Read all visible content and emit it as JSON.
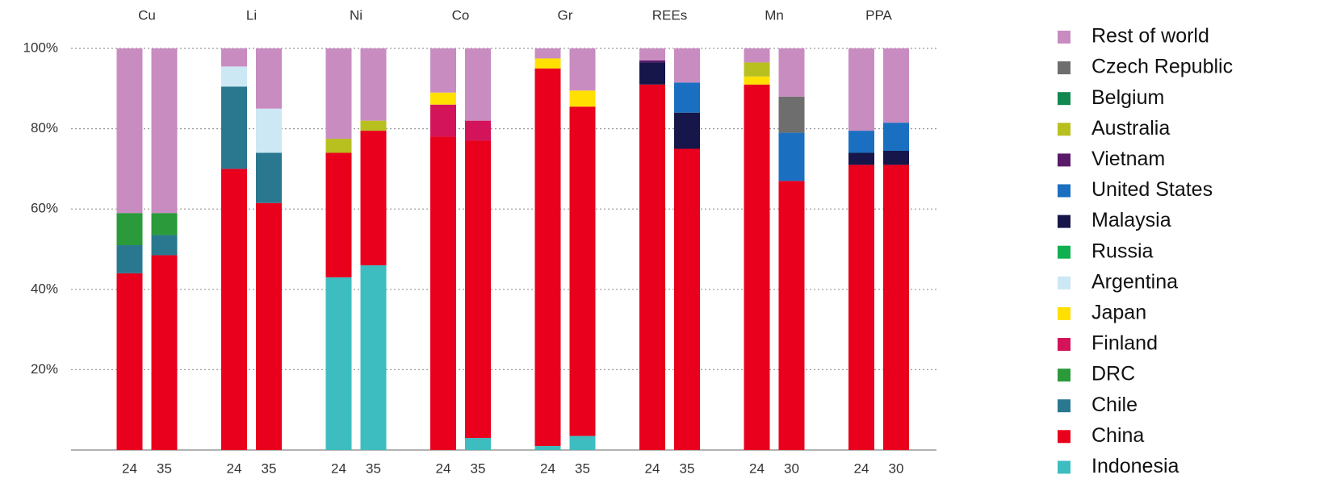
{
  "chart_data": {
    "type": "stacked_bar",
    "groups": [
      "Cu",
      "Li",
      "Ni",
      "Co",
      "Gr",
      "REEs",
      "Mn",
      "PPA"
    ],
    "categories": [
      "24",
      "35",
      "24",
      "35",
      "24",
      "35",
      "24",
      "35",
      "24",
      "35",
      "24",
      "35",
      "24",
      "30",
      "24",
      "30"
    ],
    "ylim": [
      0,
      100
    ],
    "yticks": [
      {
        "value": 20,
        "label": "20%"
      },
      {
        "value": 40,
        "label": "40%"
      },
      {
        "value": 60,
        "label": "60%"
      },
      {
        "value": 80,
        "label": "80%"
      },
      {
        "value": 100,
        "label": "100%"
      }
    ],
    "grid": true,
    "legend": "right",
    "series": [
      {
        "name": "Rest of world",
        "color": "#c88cc0",
        "values": [
          41,
          41,
          4.5,
          15,
          22.5,
          18,
          11,
          18,
          2.5,
          10.5,
          3,
          8.5,
          3.5,
          12,
          20.5,
          18.5
        ]
      },
      {
        "name": "Czech Republic",
        "color": "#6e6e6e",
        "values": [
          0,
          0,
          0,
          0,
          0,
          0,
          0,
          0,
          0,
          0,
          0,
          0,
          0,
          9,
          0,
          0
        ]
      },
      {
        "name": "Belgium",
        "color": "#108850",
        "values": [
          0,
          0,
          0,
          0,
          0,
          0,
          0,
          0,
          0,
          0,
          0,
          0,
          0,
          0,
          0,
          0
        ]
      },
      {
        "name": "Australia",
        "color": "#b8c020",
        "values": [
          0,
          0,
          0,
          0,
          3.5,
          2.5,
          0,
          0,
          0,
          0,
          0,
          0,
          3.5,
          0,
          0,
          0
        ]
      },
      {
        "name": "Vietnam",
        "color": "#5a1a6a",
        "values": [
          0,
          0,
          0,
          0,
          0,
          0,
          0,
          0,
          0,
          0,
          0.5,
          0,
          0,
          0,
          0,
          0
        ]
      },
      {
        "name": "United States",
        "color": "#1a6fc0",
        "values": [
          0,
          0,
          0,
          0,
          0,
          0,
          0,
          0,
          0,
          0,
          0,
          7.5,
          0,
          12,
          5.5,
          7
        ]
      },
      {
        "name": "Malaysia",
        "color": "#16164a",
        "values": [
          0,
          0,
          0,
          0,
          0,
          0,
          0,
          0,
          0,
          0,
          5.5,
          9,
          0,
          0,
          3,
          3.5
        ]
      },
      {
        "name": "Russia",
        "color": "#10b050",
        "values": [
          0,
          0,
          0,
          0,
          0,
          0,
          0,
          0,
          0,
          0,
          0,
          0,
          0,
          0,
          0,
          0
        ]
      },
      {
        "name": "Argentina",
        "color": "#cce8f4",
        "values": [
          0,
          0,
          5,
          11,
          0,
          0,
          0,
          0,
          0,
          0,
          0,
          0,
          0,
          0,
          0,
          0
        ]
      },
      {
        "name": "Japan",
        "color": "#ffe000",
        "values": [
          0,
          0,
          0,
          0,
          0,
          0,
          3,
          0,
          2.5,
          4,
          0,
          0,
          2,
          0,
          0,
          0
        ]
      },
      {
        "name": "Finland",
        "color": "#d4145a",
        "values": [
          0,
          0,
          0,
          0,
          0,
          0,
          8,
          5,
          0,
          0,
          0,
          0,
          0,
          0,
          0,
          0
        ]
      },
      {
        "name": "DRC",
        "color": "#2a9a3a",
        "values": [
          8,
          5.5,
          0,
          0,
          0,
          0,
          0,
          0,
          0,
          0,
          0,
          0,
          0,
          0,
          0,
          0
        ]
      },
      {
        "name": "Chile",
        "color": "#2a7890",
        "values": [
          7,
          5,
          20.5,
          12.5,
          0,
          0,
          0,
          0,
          0,
          0,
          0,
          0,
          0,
          0,
          0,
          0
        ]
      },
      {
        "name": "China",
        "color": "#e8001c",
        "values": [
          44,
          48.5,
          70,
          61.5,
          31,
          33.5,
          78,
          74,
          94,
          82,
          91,
          75,
          91,
          67,
          71,
          71
        ]
      },
      {
        "name": "Indonesia",
        "color": "#3dbdc0",
        "values": [
          0,
          0,
          0,
          0,
          43,
          46,
          0,
          3,
          1,
          3.5,
          0,
          0,
          0,
          0,
          0,
          0
        ]
      }
    ]
  }
}
